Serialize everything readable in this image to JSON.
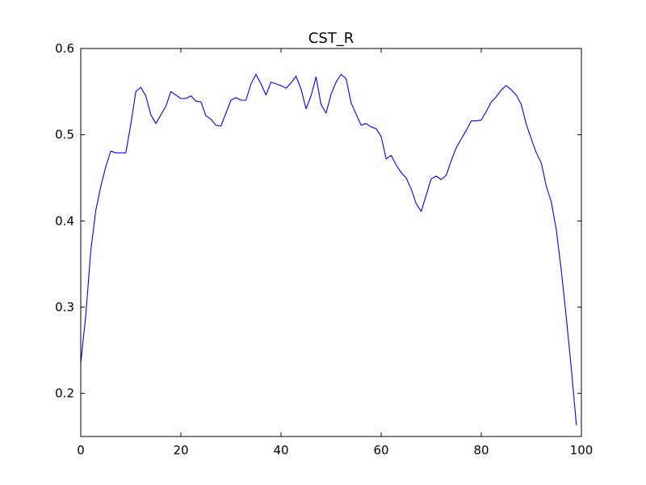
{
  "chart_data": {
    "type": "line",
    "title": "CST_R",
    "xlabel": "",
    "ylabel": "",
    "xlim": [
      0,
      100
    ],
    "ylim": [
      0.15,
      0.6
    ],
    "x_ticks": [
      0,
      20,
      40,
      60,
      80,
      100
    ],
    "y_ticks": [
      0.2,
      0.3,
      0.4,
      0.5,
      0.6
    ],
    "x_tick_labels": [
      "0",
      "20",
      "40",
      "60",
      "80",
      "100"
    ],
    "y_tick_labels": [
      "0.2",
      "0.3",
      "0.4",
      "0.5",
      "0.6"
    ],
    "grid": false,
    "legend": "none",
    "series": [
      {
        "color": "#0000ff",
        "x": [
          0,
          1,
          2,
          3,
          4,
          5,
          6,
          7,
          8,
          9,
          10,
          11,
          12,
          13,
          14,
          15,
          16,
          17,
          18,
          19,
          20,
          21,
          22,
          23,
          24,
          25,
          26,
          27,
          28,
          29,
          30,
          31,
          32,
          33,
          34,
          35,
          36,
          37,
          38,
          39,
          40,
          41,
          42,
          43,
          44,
          45,
          46,
          47,
          48,
          49,
          50,
          51,
          52,
          53,
          54,
          55,
          56,
          57,
          58,
          59,
          60,
          61,
          62,
          63,
          64,
          65,
          66,
          67,
          68,
          69,
          70,
          71,
          72,
          73,
          74,
          75,
          76,
          77,
          78,
          79,
          80,
          81,
          82,
          83,
          84,
          85,
          86,
          87,
          88,
          89,
          90,
          91,
          92,
          93,
          94,
          95,
          96,
          97,
          98,
          99
        ],
        "values": [
          0.235,
          0.29,
          0.365,
          0.412,
          0.44,
          0.463,
          0.481,
          0.479,
          0.479,
          0.479,
          0.512,
          0.55,
          0.555,
          0.545,
          0.523,
          0.513,
          0.523,
          0.533,
          0.55,
          0.546,
          0.542,
          0.542,
          0.545,
          0.539,
          0.538,
          0.522,
          0.518,
          0.511,
          0.51,
          0.525,
          0.54,
          0.543,
          0.54,
          0.54,
          0.559,
          0.57,
          0.559,
          0.546,
          0.561,
          0.559,
          0.557,
          0.554,
          0.56,
          0.568,
          0.553,
          0.53,
          0.545,
          0.567,
          0.535,
          0.525,
          0.547,
          0.561,
          0.57,
          0.565,
          0.537,
          0.524,
          0.511,
          0.513,
          0.509,
          0.507,
          0.498,
          0.472,
          0.476,
          0.465,
          0.456,
          0.45,
          0.437,
          0.42,
          0.411,
          0.43,
          0.449,
          0.452,
          0.448,
          0.453,
          0.47,
          0.485,
          0.495,
          0.505,
          0.516,
          0.516,
          0.517,
          0.527,
          0.538,
          0.544,
          0.552,
          0.557,
          0.552,
          0.546,
          0.535,
          0.512,
          0.495,
          0.479,
          0.467,
          0.44,
          0.422,
          0.389,
          0.342,
          0.287,
          0.228,
          0.163
        ]
      }
    ]
  }
}
